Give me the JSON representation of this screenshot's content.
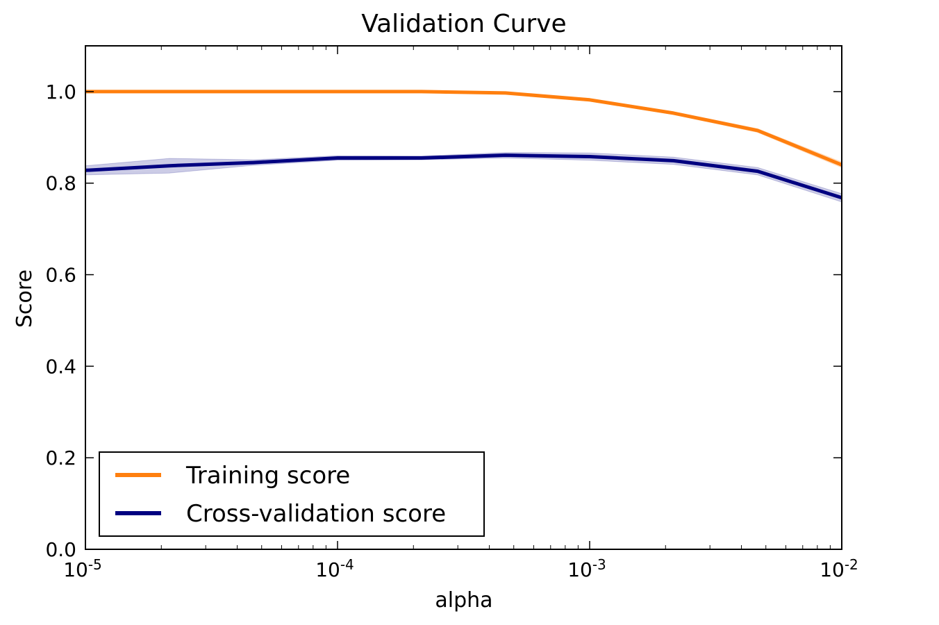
{
  "chart_data": {
    "type": "line",
    "title": "Validation Curve",
    "xlabel": "alpha",
    "ylabel": "Score",
    "x_scale": "log",
    "xlim": [
      1e-05,
      0.01
    ],
    "ylim": [
      0.0,
      1.1
    ],
    "x_ticks": [
      {
        "value": 1e-05,
        "base": "10",
        "exp": "-5"
      },
      {
        "value": 0.0001,
        "base": "10",
        "exp": "-4"
      },
      {
        "value": 0.001,
        "base": "10",
        "exp": "-3"
      },
      {
        "value": 0.01,
        "base": "10",
        "exp": "-2"
      }
    ],
    "y_ticks": [
      {
        "value": 0.0,
        "label": "0.0"
      },
      {
        "value": 0.2,
        "label": "0.2"
      },
      {
        "value": 0.4,
        "label": "0.4"
      },
      {
        "value": 0.6,
        "label": "0.6"
      },
      {
        "value": 0.8,
        "label": "0.8"
      },
      {
        "value": 1.0,
        "label": "1.0"
      }
    ],
    "x": [
      1e-05,
      2.15e-05,
      4.64e-05,
      0.0001,
      0.000215,
      0.000464,
      0.001,
      0.00215,
      0.00464,
      0.01
    ],
    "series": [
      {
        "name": "Training score",
        "color": "#ff7f0e",
        "values": [
          1.0,
          1.0,
          1.0,
          1.0,
          1.0,
          0.997,
          0.982,
          0.953,
          0.915,
          0.84
        ],
        "band_halfwidth": [
          0.001,
          0.001,
          0.001,
          0.001,
          0.001,
          0.002,
          0.003,
          0.003,
          0.004,
          0.006
        ]
      },
      {
        "name": "Cross-validation score",
        "color": "#000080",
        "values": [
          0.828,
          0.838,
          0.845,
          0.855,
          0.855,
          0.861,
          0.858,
          0.849,
          0.826,
          0.768
        ],
        "band_halfwidth": [
          0.01,
          0.016,
          0.006,
          0.005,
          0.004,
          0.006,
          0.008,
          0.008,
          0.008,
          0.009
        ]
      }
    ],
    "legend": {
      "position": "lower-left"
    },
    "grid": false
  }
}
